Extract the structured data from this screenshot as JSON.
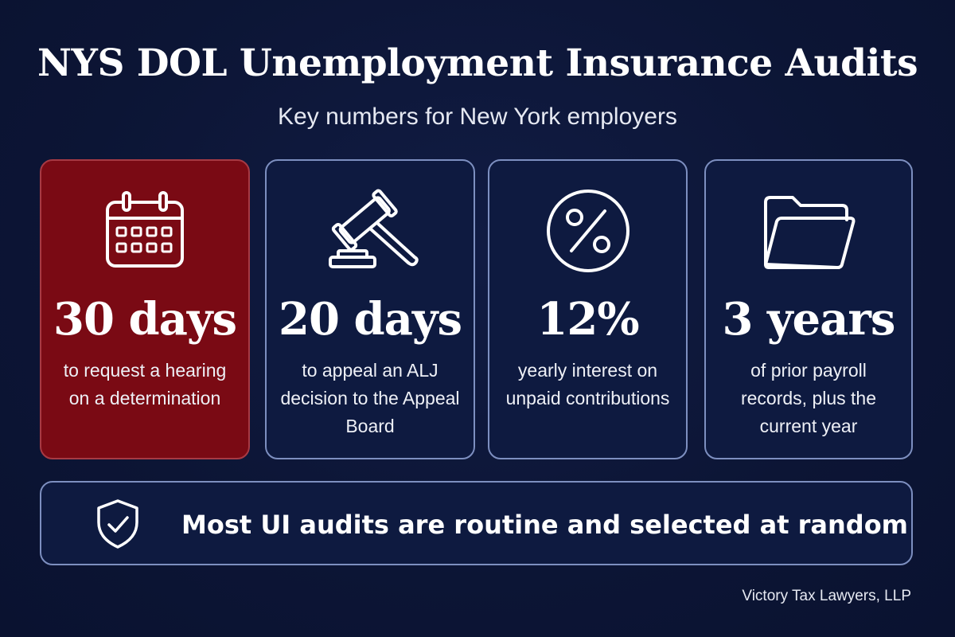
{
  "header": {
    "title": "NYS DOL Unemployment Insurance Audits",
    "subtitle": "Key numbers for New York employers"
  },
  "cards": [
    {
      "icon": "calendar-icon",
      "number": "30 days",
      "description": "to request a hearing on a determination",
      "highlighted": true
    },
    {
      "icon": "gavel-icon",
      "number": "20 days",
      "description": "to appeal an ALJ decision to the Appeal Board",
      "highlighted": false
    },
    {
      "icon": "percent-icon",
      "number": "12%",
      "description": "yearly interest on unpaid contributions",
      "highlighted": false
    },
    {
      "icon": "folder-icon",
      "number": "3 years",
      "description": "of prior payroll records, plus the current year",
      "highlighted": false
    }
  ],
  "banner": {
    "icon": "shield-check-icon",
    "text": "Most UI audits are routine and selected at random"
  },
  "footer": {
    "credit": "Victory Tax Lawyers, LLP"
  },
  "colors": {
    "background": "#0d1638",
    "highlight_card": "#7a0a14",
    "card_border": "#7d8fc0",
    "text": "#ffffff"
  }
}
